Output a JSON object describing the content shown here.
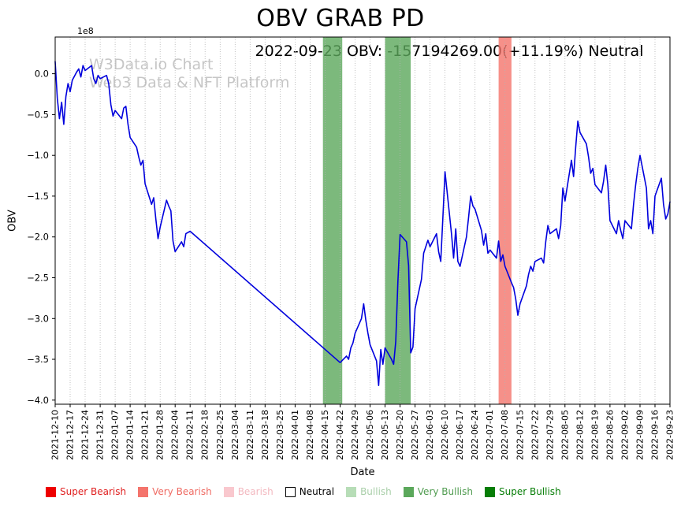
{
  "watermark": {
    "line1": "W3Data.io Chart",
    "line2": "Web3 Data & NFT Platform"
  },
  "chart_data": {
    "type": "line",
    "title": "OBV GRAB PD",
    "annotation": "2022-09-23 OBV: -157194269.00(+11.19%) Neutral",
    "xlabel": "Date",
    "ylabel": "OBV",
    "y_offset_label": "1e8",
    "y_units": "1e8",
    "ylim": [
      -4.05,
      0.45
    ],
    "ytick_values": [
      0,
      -0.5,
      -1,
      -1.5,
      -2,
      -2.5,
      -3,
      -3.5,
      -4
    ],
    "ytick_labels": [
      "0.0",
      "−0.5",
      "−1.0",
      "−1.5",
      "−2.0",
      "−2.5",
      "−3.0",
      "−3.5",
      "−4.0"
    ],
    "xticks": [
      "2021-12-10",
      "2021-12-17",
      "2021-12-24",
      "2021-12-31",
      "2022-01-07",
      "2022-01-14",
      "2022-01-21",
      "2022-01-28",
      "2022-02-04",
      "2022-02-11",
      "2022-02-18",
      "2022-02-25",
      "2022-03-04",
      "2022-03-11",
      "2022-03-18",
      "2022-03-25",
      "2022-04-01",
      "2022-04-08",
      "2022-04-15",
      "2022-04-22",
      "2022-04-29",
      "2022-05-06",
      "2022-05-13",
      "2022-05-20",
      "2022-05-27",
      "2022-06-03",
      "2022-06-10",
      "2022-06-17",
      "2022-06-24",
      "2022-07-01",
      "2022-07-08",
      "2022-07-15",
      "2022-07-22",
      "2022-07-29",
      "2022-08-05",
      "2022-08-12",
      "2022-08-19",
      "2022-08-26",
      "2022-09-02",
      "2022-09-09",
      "2022-09-16",
      "2022-09-23"
    ],
    "grid": {
      "vertical_dotted": true,
      "color": "#b3b3b3"
    },
    "line": {
      "name": "OBV",
      "color": "#0000dd",
      "width": 1.6
    },
    "points": [
      [
        "2021-12-10",
        0.15
      ],
      [
        "2021-12-11",
        -0.3
      ],
      [
        "2021-12-12",
        -0.55
      ],
      [
        "2021-12-13",
        -0.35
      ],
      [
        "2021-12-14",
        -0.62
      ],
      [
        "2021-12-15",
        -0.28
      ],
      [
        "2021-12-16",
        -0.12
      ],
      [
        "2021-12-17",
        -0.22
      ],
      [
        "2021-12-18",
        -0.08
      ],
      [
        "2021-12-20",
        0.02
      ],
      [
        "2021-12-21",
        0.06
      ],
      [
        "2021-12-22",
        -0.04
      ],
      [
        "2021-12-23",
        0.1
      ],
      [
        "2021-12-24",
        0.04
      ],
      [
        "2021-12-27",
        0.1
      ],
      [
        "2021-12-28",
        -0.06
      ],
      [
        "2021-12-29",
        -0.12
      ],
      [
        "2021-12-30",
        -0.02
      ],
      [
        "2021-12-31",
        -0.06
      ],
      [
        "2022-01-03",
        -0.02
      ],
      [
        "2022-01-04",
        -0.12
      ],
      [
        "2022-01-05",
        -0.38
      ],
      [
        "2022-01-06",
        -0.52
      ],
      [
        "2022-01-07",
        -0.45
      ],
      [
        "2022-01-10",
        -0.55
      ],
      [
        "2022-01-11",
        -0.42
      ],
      [
        "2022-01-12",
        -0.4
      ],
      [
        "2022-01-13",
        -0.62
      ],
      [
        "2022-01-14",
        -0.78
      ],
      [
        "2022-01-17",
        -0.9
      ],
      [
        "2022-01-18",
        -1.02
      ],
      [
        "2022-01-19",
        -1.12
      ],
      [
        "2022-01-20",
        -1.06
      ],
      [
        "2022-01-21",
        -1.35
      ],
      [
        "2022-01-24",
        -1.6
      ],
      [
        "2022-01-25",
        -1.52
      ],
      [
        "2022-01-26",
        -1.78
      ],
      [
        "2022-01-27",
        -2.02
      ],
      [
        "2022-01-28",
        -1.88
      ],
      [
        "2022-01-31",
        -1.55
      ],
      [
        "2022-02-01",
        -1.62
      ],
      [
        "2022-02-02",
        -1.68
      ],
      [
        "2022-02-03",
        -2.05
      ],
      [
        "2022-02-04",
        -2.18
      ],
      [
        "2022-02-07",
        -2.06
      ],
      [
        "2022-02-08",
        -2.12
      ],
      [
        "2022-02-09",
        -1.96
      ],
      [
        "2022-02-11",
        -1.93
      ],
      [
        "2022-04-22",
        -3.54
      ],
      [
        "2022-04-25",
        -3.46
      ],
      [
        "2022-04-26",
        -3.5
      ],
      [
        "2022-04-27",
        -3.36
      ],
      [
        "2022-04-28",
        -3.3
      ],
      [
        "2022-04-29",
        -3.18
      ],
      [
        "2022-05-02",
        -3.0
      ],
      [
        "2022-05-03",
        -2.82
      ],
      [
        "2022-05-04",
        -3.02
      ],
      [
        "2022-05-05",
        -3.18
      ],
      [
        "2022-05-06",
        -3.32
      ],
      [
        "2022-05-09",
        -3.52
      ],
      [
        "2022-05-10",
        -3.82
      ],
      [
        "2022-05-11",
        -3.38
      ],
      [
        "2022-05-12",
        -3.56
      ],
      [
        "2022-05-13",
        -3.36
      ],
      [
        "2022-05-16",
        -3.5
      ],
      [
        "2022-05-17",
        -3.56
      ],
      [
        "2022-05-18",
        -3.28
      ],
      [
        "2022-05-19",
        -2.55
      ],
      [
        "2022-05-20",
        -1.97
      ],
      [
        "2022-05-23",
        -2.06
      ],
      [
        "2022-05-24",
        -2.35
      ],
      [
        "2022-05-25",
        -3.42
      ],
      [
        "2022-05-26",
        -3.35
      ],
      [
        "2022-05-27",
        -2.88
      ],
      [
        "2022-05-30",
        -2.52
      ],
      [
        "2022-05-31",
        -2.2
      ],
      [
        "2022-06-01",
        -2.12
      ],
      [
        "2022-06-02",
        -2.04
      ],
      [
        "2022-06-03",
        -2.12
      ],
      [
        "2022-06-06",
        -1.96
      ],
      [
        "2022-06-07",
        -2.18
      ],
      [
        "2022-06-08",
        -2.3
      ],
      [
        "2022-06-09",
        -1.76
      ],
      [
        "2022-06-10",
        -1.2
      ],
      [
        "2022-06-13",
        -1.96
      ],
      [
        "2022-06-14",
        -2.26
      ],
      [
        "2022-06-15",
        -1.9
      ],
      [
        "2022-06-16",
        -2.3
      ],
      [
        "2022-06-17",
        -2.36
      ],
      [
        "2022-06-20",
        -2.0
      ],
      [
        "2022-06-21",
        -1.76
      ],
      [
        "2022-06-22",
        -1.5
      ],
      [
        "2022-06-23",
        -1.62
      ],
      [
        "2022-06-24",
        -1.66
      ],
      [
        "2022-06-27",
        -1.92
      ],
      [
        "2022-06-28",
        -2.1
      ],
      [
        "2022-06-29",
        -1.96
      ],
      [
        "2022-06-30",
        -2.2
      ],
      [
        "2022-07-01",
        -2.16
      ],
      [
        "2022-07-04",
        -2.26
      ],
      [
        "2022-07-05",
        -2.05
      ],
      [
        "2022-07-06",
        -2.3
      ],
      [
        "2022-07-07",
        -2.22
      ],
      [
        "2022-07-08",
        -2.36
      ],
      [
        "2022-07-11",
        -2.56
      ],
      [
        "2022-07-12",
        -2.62
      ],
      [
        "2022-07-13",
        -2.76
      ],
      [
        "2022-07-14",
        -2.96
      ],
      [
        "2022-07-15",
        -2.82
      ],
      [
        "2022-07-18",
        -2.6
      ],
      [
        "2022-07-19",
        -2.46
      ],
      [
        "2022-07-20",
        -2.36
      ],
      [
        "2022-07-21",
        -2.42
      ],
      [
        "2022-07-22",
        -2.3
      ],
      [
        "2022-07-25",
        -2.26
      ],
      [
        "2022-07-26",
        -2.32
      ],
      [
        "2022-07-27",
        -2.06
      ],
      [
        "2022-07-28",
        -1.86
      ],
      [
        "2022-07-29",
        -1.96
      ],
      [
        "2022-08-01",
        -1.9
      ],
      [
        "2022-08-02",
        -2.02
      ],
      [
        "2022-08-03",
        -1.86
      ],
      [
        "2022-08-04",
        -1.4
      ],
      [
        "2022-08-05",
        -1.56
      ],
      [
        "2022-08-08",
        -1.06
      ],
      [
        "2022-08-09",
        -1.26
      ],
      [
        "2022-08-10",
        -0.9
      ],
      [
        "2022-08-11",
        -0.58
      ],
      [
        "2022-08-12",
        -0.72
      ],
      [
        "2022-08-15",
        -0.86
      ],
      [
        "2022-08-16",
        -1.02
      ],
      [
        "2022-08-17",
        -1.22
      ],
      [
        "2022-08-18",
        -1.16
      ],
      [
        "2022-08-19",
        -1.36
      ],
      [
        "2022-08-22",
        -1.46
      ],
      [
        "2022-08-23",
        -1.32
      ],
      [
        "2022-08-24",
        -1.12
      ],
      [
        "2022-08-25",
        -1.36
      ],
      [
        "2022-08-26",
        -1.8
      ],
      [
        "2022-08-29",
        -1.96
      ],
      [
        "2022-08-30",
        -1.8
      ],
      [
        "2022-08-31",
        -1.92
      ],
      [
        "2022-09-01",
        -2.02
      ],
      [
        "2022-09-02",
        -1.8
      ],
      [
        "2022-09-05",
        -1.9
      ],
      [
        "2022-09-06",
        -1.6
      ],
      [
        "2022-09-07",
        -1.36
      ],
      [
        "2022-09-08",
        -1.16
      ],
      [
        "2022-09-09",
        -1.0
      ],
      [
        "2022-09-12",
        -1.4
      ],
      [
        "2022-09-13",
        -1.9
      ],
      [
        "2022-09-14",
        -1.8
      ],
      [
        "2022-09-15",
        -1.96
      ],
      [
        "2022-09-16",
        -1.5
      ],
      [
        "2022-09-19",
        -1.28
      ],
      [
        "2022-09-20",
        -1.6
      ],
      [
        "2022-09-21",
        -1.78
      ],
      [
        "2022-09-22",
        -1.72
      ],
      [
        "2022-09-23",
        -1.57
      ]
    ],
    "bands": [
      {
        "start": "2022-04-14",
        "end": "2022-04-23",
        "color": "#5ba85b",
        "opacity": 0.8,
        "sentiment": "Very Bullish"
      },
      {
        "start": "2022-05-13",
        "end": "2022-05-25",
        "color": "#5ba85b",
        "opacity": 0.8,
        "sentiment": "Very Bullish"
      },
      {
        "start": "2022-07-05",
        "end": "2022-07-11",
        "color": "#f4746c",
        "opacity": 0.8,
        "sentiment": "Very Bearish"
      }
    ],
    "legend": {
      "position": "bottom",
      "items": [
        {
          "label": "Super Bearish",
          "swatch": "#ee0000",
          "text": "#e02020"
        },
        {
          "label": "Very Bearish",
          "swatch": "#f4746c",
          "text": "#ef6a62"
        },
        {
          "label": "Bearish",
          "swatch": "#f9c8ce",
          "text": "#f3b9c0"
        },
        {
          "label": "Neutral",
          "swatch": "#ffffff",
          "text": "#000000",
          "edge": "#000000"
        },
        {
          "label": "Bullish",
          "swatch": "#b7ddb7",
          "text": "#a9cfa9"
        },
        {
          "label": "Very Bullish",
          "swatch": "#5ba85b",
          "text": "#4f9b4f"
        },
        {
          "label": "Super Bullish",
          "swatch": "#067d06",
          "text": "#067d06"
        }
      ]
    }
  }
}
